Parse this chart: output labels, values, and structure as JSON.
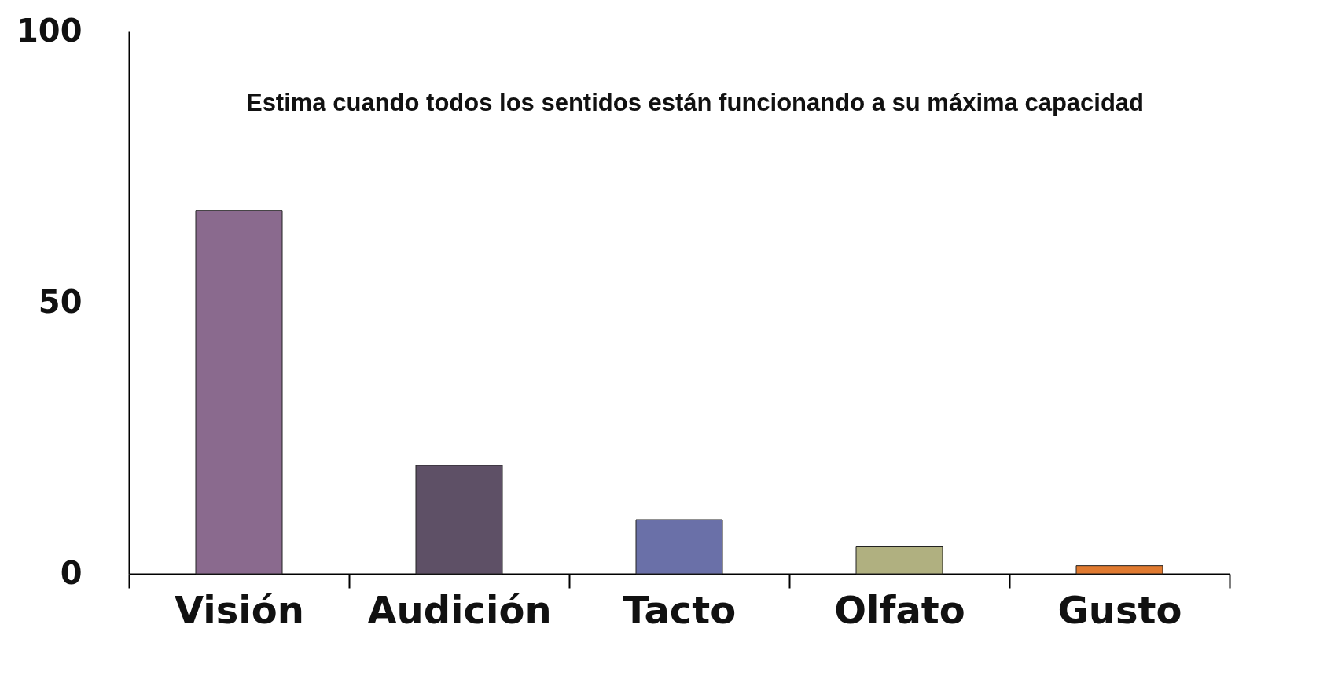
{
  "chart_data": {
    "type": "bar",
    "title": "Estima cuando todos los sentidos están funcionando a su máxima capacidad",
    "categories": [
      "Visión",
      "Audición",
      "Tacto",
      "Olfato",
      "Gusto"
    ],
    "values": [
      67,
      20,
      10,
      5,
      1.5
    ],
    "colors": [
      "#8a6a8e",
      "#5e5066",
      "#6a70a8",
      "#b0b080",
      "#e07a30"
    ],
    "ylim": [
      0,
      100
    ],
    "yticks": [
      0,
      50,
      100
    ],
    "grid": false
  }
}
